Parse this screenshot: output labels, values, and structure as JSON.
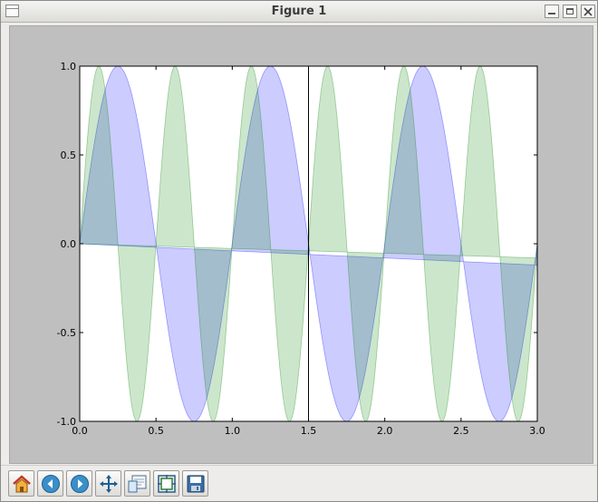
{
  "window": {
    "title": "Figure 1"
  },
  "toolbar": {
    "buttons": [
      {
        "name": "home-button",
        "icon": "home-icon"
      },
      {
        "name": "back-button",
        "icon": "back-arrow-icon"
      },
      {
        "name": "forward-button",
        "icon": "forward-arrow-icon"
      },
      {
        "name": "pan-button",
        "icon": "move-icon"
      },
      {
        "name": "zoom-to-rect-button",
        "icon": "zoom-rect-icon"
      },
      {
        "name": "subplots-button",
        "icon": "subplots-icon"
      },
      {
        "name": "save-button",
        "icon": "save-icon"
      }
    ]
  },
  "chart_data": {
    "type": "area",
    "title": "",
    "xlabel": "",
    "ylabel": "",
    "xlim": [
      0.0,
      3.0
    ],
    "ylim": [
      -1.0,
      1.0
    ],
    "xticks": [
      "0.0",
      "0.5",
      "1.0",
      "1.5",
      "2.0",
      "2.5",
      "3.0"
    ],
    "yticks": [
      "1.0",
      "0.5",
      "0.0",
      "-0.5",
      "-1.0"
    ],
    "vertical_line_x": 1.5,
    "grid": false,
    "legend": "none",
    "series": [
      {
        "function": "sin(2*pi*x)",
        "baseline_start": 0.0,
        "baseline_end": -0.12,
        "color": "#0000ff",
        "alpha": 0.2
      },
      {
        "function": "sin(4*pi*x)",
        "baseline_start": 0.0,
        "baseline_end": -0.08,
        "color": "#008000",
        "alpha": 0.2
      }
    ]
  },
  "colors": {
    "canvas": "#bfbfbf",
    "axes_bg": "#ffffff"
  }
}
